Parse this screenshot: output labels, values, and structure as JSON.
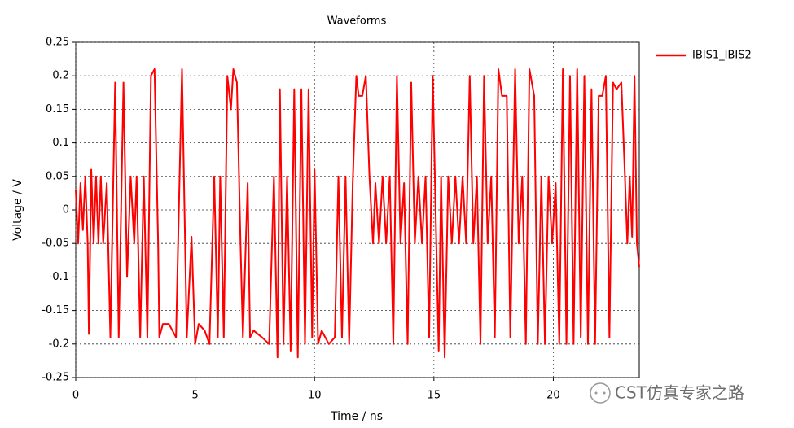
{
  "chart_data": {
    "type": "line",
    "title": "Waveforms",
    "x_label": "Time / ns",
    "y_label": "Voltage / V",
    "x": [
      0,
      0.1,
      0.2,
      0.3,
      0.4,
      0.5,
      0.55,
      0.65,
      0.75,
      0.85,
      0.95,
      1.05,
      1.15,
      1.3,
      1.45,
      1.65,
      1.8,
      2.0,
      2.15,
      2.3,
      2.45,
      2.55,
      2.7,
      2.85,
      3.0,
      3.15,
      3.3,
      3.45,
      3.5,
      3.65,
      3.9,
      4.2,
      4.45,
      4.65,
      4.85,
      5.0,
      5.15,
      5.4,
      5.6,
      5.8,
      5.95,
      6.05,
      6.2,
      6.35,
      6.5,
      6.6,
      6.75,
      6.9,
      7.0,
      7.2,
      7.3,
      7.45,
      7.8,
      8.1,
      8.3,
      8.45,
      8.55,
      8.7,
      8.85,
      9.0,
      9.15,
      9.3,
      9.45,
      9.6,
      9.75,
      9.9,
      10.0,
      10.15,
      10.3,
      10.6,
      10.85,
      11.0,
      11.15,
      11.3,
      11.45,
      11.6,
      11.75,
      11.85,
      12.0,
      12.15,
      12.3,
      12.45,
      12.55,
      12.7,
      12.85,
      13.0,
      13.15,
      13.3,
      13.45,
      13.6,
      13.75,
      13.9,
      14.05,
      14.2,
      14.35,
      14.5,
      14.65,
      14.8,
      14.95,
      15.1,
      15.2,
      15.3,
      15.45,
      15.6,
      15.75,
      15.9,
      16.05,
      16.2,
      16.35,
      16.5,
      16.65,
      16.8,
      16.95,
      17.1,
      17.25,
      17.4,
      17.55,
      17.7,
      17.85,
      18.05,
      18.2,
      18.4,
      18.55,
      18.7,
      18.85,
      19.0,
      19.2,
      19.35,
      19.5,
      19.65,
      19.8,
      19.95,
      20.1,
      20.25,
      20.4,
      20.55,
      20.7,
      20.85,
      21.0,
      21.15,
      21.3,
      21.45,
      21.6,
      21.75,
      21.9,
      22.05,
      22.2,
      22.35,
      22.5,
      22.65,
      22.85,
      23.0,
      23.1,
      23.2,
      23.3,
      23.4,
      23.5,
      23.6
    ],
    "series": [
      {
        "name": "IBIS1_IBIS2",
        "color": "#ff0000",
        "values": [
          0.03,
          -0.05,
          0.04,
          -0.03,
          0.05,
          -0.05,
          -0.185,
          0.06,
          -0.05,
          0.05,
          -0.05,
          0.05,
          -0.05,
          0.04,
          -0.19,
          0.19,
          -0.19,
          0.19,
          -0.1,
          0.05,
          -0.05,
          0.05,
          -0.19,
          0.05,
          -0.19,
          0.2,
          0.21,
          -0.05,
          -0.19,
          -0.17,
          -0.17,
          -0.19,
          0.21,
          -0.19,
          -0.04,
          -0.2,
          -0.17,
          -0.18,
          -0.2,
          0.05,
          -0.19,
          0.05,
          -0.19,
          0.2,
          0.15,
          0.21,
          0.19,
          -0.05,
          -0.19,
          0.04,
          -0.19,
          -0.18,
          -0.19,
          -0.2,
          0.05,
          -0.22,
          0.18,
          -0.2,
          0.05,
          -0.21,
          0.18,
          -0.22,
          0.18,
          -0.2,
          0.18,
          -0.19,
          0.06,
          -0.2,
          -0.18,
          -0.2,
          -0.19,
          0.05,
          -0.19,
          0.05,
          -0.2,
          0.04,
          0.2,
          0.17,
          0.17,
          0.2,
          0.05,
          -0.05,
          0.04,
          -0.05,
          0.05,
          -0.05,
          0.05,
          -0.2,
          0.2,
          -0.05,
          0.04,
          -0.2,
          0.19,
          -0.05,
          0.05,
          -0.05,
          0.05,
          -0.19,
          0.2,
          -0.05,
          -0.21,
          0.05,
          -0.22,
          0.05,
          -0.05,
          0.05,
          -0.05,
          0.05,
          -0.05,
          0.2,
          -0.05,
          0.05,
          -0.2,
          0.2,
          -0.05,
          0.05,
          -0.19,
          0.21,
          0.17,
          0.17,
          -0.19,
          0.21,
          -0.05,
          0.05,
          -0.2,
          0.21,
          0.17,
          -0.2,
          0.05,
          -0.2,
          0.05,
          -0.05,
          0.04,
          -0.2,
          0.21,
          -0.2,
          0.2,
          -0.2,
          0.21,
          -0.19,
          0.2,
          -0.2,
          0.18,
          -0.2,
          0.17,
          0.17,
          0.2,
          -0.19,
          0.19,
          0.18,
          0.19,
          0.05,
          -0.05,
          0.05,
          -0.04,
          0.2,
          -0.05,
          -0.085
        ]
      }
    ],
    "xlim": [
      0,
      23.6
    ],
    "xticks": [
      0,
      5,
      10,
      15,
      20
    ],
    "ylim": [
      -0.25,
      0.25
    ],
    "yticks": [
      0.25,
      0.2,
      0.15,
      0.1,
      0.05,
      0,
      -0.05,
      -0.1,
      -0.15,
      -0.2,
      -0.25
    ],
    "grid": true,
    "legend": "right",
    "watermark": "CST仿真专家之路"
  }
}
